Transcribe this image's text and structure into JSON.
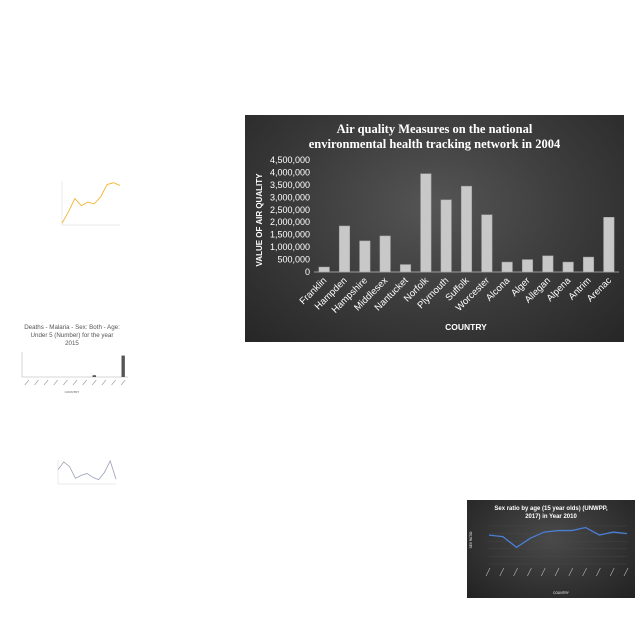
{
  "chart_data": [
    {
      "type": "bar",
      "title": "Air quality Measures on the national environmental health tracking network in 2004",
      "title_lines": [
        "Air quality Measures on the national",
        "environmental health tracking network in 2004"
      ],
      "xlabel": "COUNTRY",
      "ylabel": "VALUE OF AIR QUALITY",
      "categories": [
        "Franklin",
        "Hampden",
        "Hampshire",
        "Middlesex",
        "Nantucket",
        "Norfolk",
        "Plymouth",
        "Suffolk",
        "Worcester",
        "Alcona",
        "Alger",
        "Allegan",
        "Alpena",
        "Antrim",
        "Arenac"
      ],
      "values": [
        200000,
        1850000,
        1250000,
        1450000,
        300000,
        3950000,
        2900000,
        3450000,
        2300000,
        400000,
        500000,
        650000,
        400000,
        600000,
        2200000
      ],
      "ylim": [
        0,
        4500000
      ],
      "yticks": [
        "0",
        "500,000",
        "1,000,000",
        "1,500,000",
        "2,000,000",
        "2,500,000",
        "3,000,000",
        "3,500,000",
        "4,000,000",
        "4,500,000"
      ],
      "grid": false,
      "colors": {
        "background": "#333333",
        "bar": "#c8c8c8",
        "text": "#ffffff"
      }
    },
    {
      "type": "line",
      "title": "",
      "values": [
        0.2,
        1.5,
        3.0,
        2.2,
        2.6,
        2.4,
        3.2,
        4.6,
        4.8,
        4.5
      ],
      "ylim": [
        0,
        5
      ],
      "colors": {
        "line": "#f2b632"
      }
    },
    {
      "type": "bar",
      "title": "Deaths - Malaria - Sex: Both - Age: Under 5 (Number) for the year 2015",
      "title_lines": [
        "Deaths - Malaria - Sex: Both - Age:",
        "Under 5 (Number) for the year",
        "2015"
      ],
      "xlabel": "COUNTRY",
      "values": [
        0,
        0,
        0,
        0,
        0,
        0,
        0,
        1,
        0,
        0,
        12
      ],
      "ylim": [
        0,
        14
      ],
      "colors": {
        "bar": "#555555"
      }
    },
    {
      "type": "line",
      "title": "",
      "values": [
        3.0,
        4.6,
        3.6,
        1.2,
        1.8,
        2.2,
        1.4,
        0.9,
        2.4,
        4.8,
        1.0
      ],
      "ylim": [
        0,
        5
      ],
      "colors": {
        "line": "#9aa0b8"
      }
    },
    {
      "type": "line",
      "title": "Sex ratio by age (15 year olds) (UNWPP, 2017) in Year 2010",
      "title_lines": [
        "Sex ratio by age (15 year olds) (UNWPP,",
        "2017) in Year 2010"
      ],
      "xlabel": "COUNTRY",
      "ylabel": "SEX RATIO",
      "values": [
        104,
        103,
        96,
        102,
        106,
        107,
        107,
        109,
        104,
        106,
        105
      ],
      "ylim": [
        85,
        110
      ],
      "colors": {
        "line": "#4a7fd4",
        "background": "#333333"
      }
    }
  ]
}
